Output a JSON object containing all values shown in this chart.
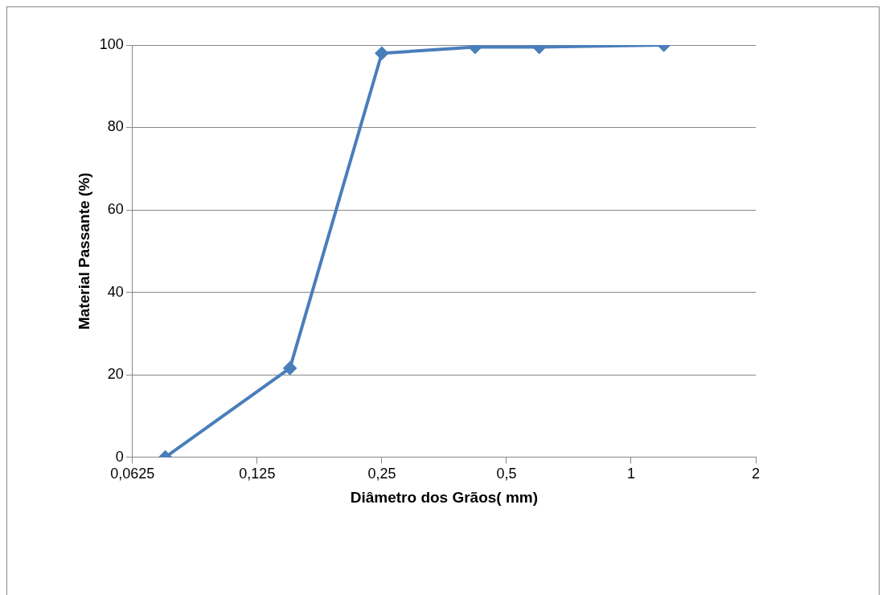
{
  "chart_data": {
    "type": "line",
    "xlabel": "Diâmetro dos Grãos( mm)",
    "ylabel": "Material Passante (%)",
    "log": "x",
    "x": [
      0.075,
      0.15,
      0.25,
      0.42,
      0.6,
      1.2
    ],
    "series": [
      {
        "color": "#4a7ebb",
        "values": [
          0,
          21.6,
          98,
          99.5,
          99.5,
          100
        ]
      }
    ],
    "xlim": [
      0.0625,
      2
    ],
    "xticks": [
      {
        "value": 0.0625,
        "label": "0,0625"
      },
      {
        "value": 0.125,
        "label": "0,125"
      },
      {
        "value": 0.25,
        "label": "0,25"
      },
      {
        "value": 0.5,
        "label": "0,5"
      },
      1,
      2
    ],
    "ylim": [
      0,
      100
    ],
    "yticks": [
      0,
      20,
      40,
      60,
      80,
      100
    ],
    "grid": "y",
    "legend": false,
    "marker": "diamond",
    "line_style": "solid"
  }
}
